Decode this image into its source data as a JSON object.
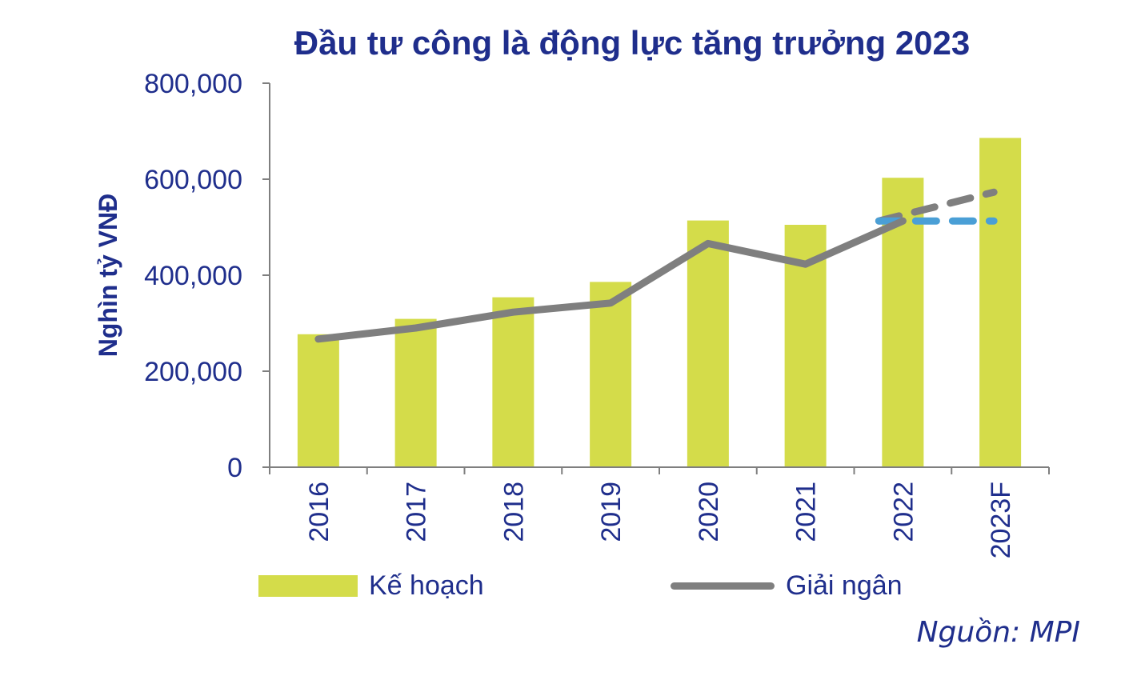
{
  "chart_data": {
    "type": "bar",
    "title": "Đầu tư công là động lực tăng trưởng 2023",
    "ylabel": "Nghìn tỷ VNĐ",
    "xlabel": "",
    "categories": [
      "2016",
      "2017",
      "2018",
      "2019",
      "2020",
      "2021",
      "2022",
      "2023F"
    ],
    "ylim": [
      0,
      800000
    ],
    "yticks": [
      0,
      200000,
      400000,
      600000,
      800000
    ],
    "ytick_labels": [
      "0",
      "200,000",
      "400,000",
      "600,000",
      "800,000"
    ],
    "series": [
      {
        "name": "Kế hoạch",
        "type": "bar",
        "color": "#d4dc4a",
        "values": [
          277000,
          309000,
          354000,
          386000,
          514000,
          505000,
          603000,
          686000
        ]
      },
      {
        "name": "Giải ngân",
        "type": "line",
        "color": "#7f7f7f",
        "values": [
          267000,
          290000,
          323000,
          342000,
          466000,
          423000,
          513000,
          null
        ]
      }
    ],
    "projections": [
      {
        "color": "#7f7f7f",
        "style": "dashed",
        "from": [
          "2022",
          513000
        ],
        "to": [
          "2023F",
          573000
        ]
      },
      {
        "color": "#4a9fd6",
        "style": "dashed",
        "from": [
          "2022",
          513000
        ],
        "to": [
          "2023F",
          513000
        ]
      }
    ],
    "legend_position": "bottom",
    "source": "Nguồn: MPI"
  }
}
